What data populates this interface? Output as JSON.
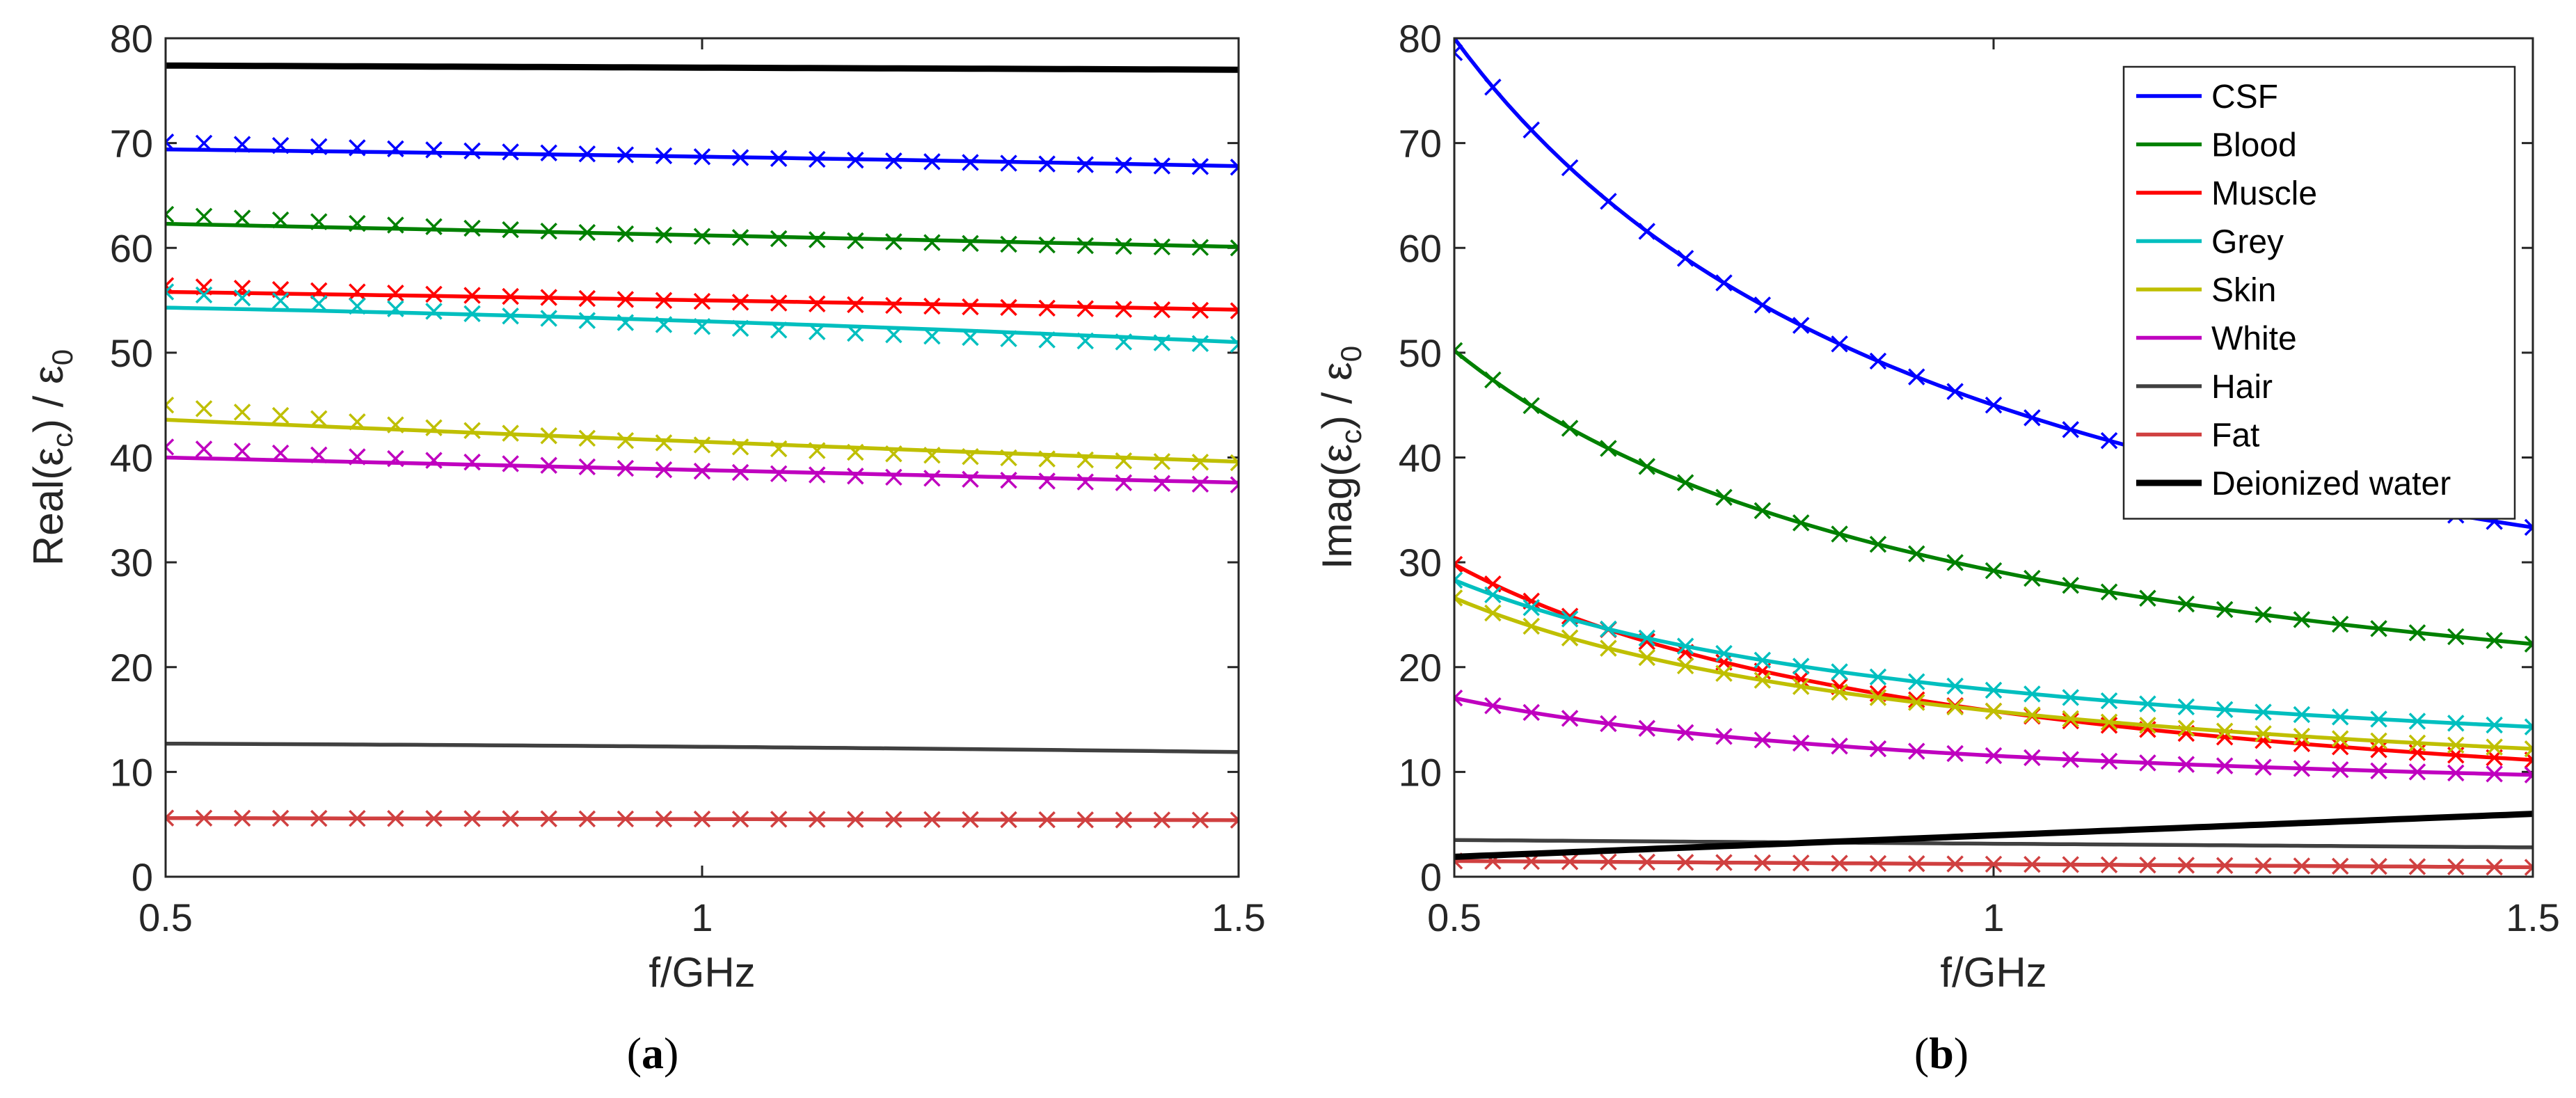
{
  "chart_data": [
    {
      "type": "line",
      "panel": "a",
      "caption_letter": "a",
      "xlabel": "f/GHz",
      "ylabel_main": "Real(",
      "ylabel_eps": "ε",
      "ylabel_sub": "c",
      "ylabel_tail": ") / ",
      "ylabel_sub0": "0",
      "xlim": [
        0.5,
        1.5
      ],
      "ylim": [
        0,
        80
      ],
      "xticks": [
        0.5,
        1,
        1.5
      ],
      "xtick_labels": [
        "0.5",
        "1",
        "1.5"
      ],
      "yticks": [
        0,
        10,
        20,
        30,
        40,
        50,
        60,
        70,
        80
      ],
      "ytick_labels": [
        "0",
        "10",
        "20",
        "30",
        "40",
        "50",
        "60",
        "70",
        "80"
      ],
      "series": [
        {
          "name": "Deionized water",
          "color": "#000000",
          "thick": true,
          "line": [
            77.4,
            77.2,
            77.0
          ],
          "markers": null
        },
        {
          "name": "CSF",
          "color": "#0000ff",
          "line": [
            69.4,
            68.7,
            67.8
          ],
          "markers": [
            70.1,
            68.7,
            67.7
          ]
        },
        {
          "name": "Blood",
          "color": "#008000",
          "line": [
            62.3,
            61.2,
            60.1
          ],
          "markers": [
            63.2,
            61.1,
            60.0
          ]
        },
        {
          "name": "Muscle",
          "color": "#ff0000",
          "line": [
            55.8,
            55.0,
            54.1
          ],
          "markers": [
            56.4,
            54.9,
            54.0
          ]
        },
        {
          "name": "Grey",
          "color": "#00bfbf",
          "line": [
            54.3,
            53.0,
            51.0
          ],
          "markers": [
            55.8,
            52.5,
            50.8
          ]
        },
        {
          "name": "Skin",
          "color": "#bfbf00",
          "line": [
            43.6,
            41.5,
            39.6
          ],
          "markers": [
            45.0,
            41.2,
            39.5
          ]
        },
        {
          "name": "White",
          "color": "#bf00bf",
          "line": [
            40.0,
            38.8,
            37.6
          ],
          "markers": [
            41.0,
            38.7,
            37.4
          ]
        },
        {
          "name": "Hair",
          "color": "#404040",
          "line": [
            12.7,
            12.4,
            11.9
          ],
          "markers": null
        },
        {
          "name": "Fat",
          "color": "#d04040",
          "line": [
            5.6,
            5.5,
            5.4
          ],
          "markers": [
            5.6,
            5.5,
            5.4
          ]
        }
      ]
    },
    {
      "type": "line",
      "panel": "b",
      "caption_letter": "b",
      "xlabel": "f/GHz",
      "ylabel_main": "Imag(",
      "ylabel_eps": "ε",
      "ylabel_sub": "c",
      "ylabel_tail": ") / ",
      "ylabel_sub0": "0",
      "xlim": [
        0.5,
        1.5
      ],
      "ylim": [
        0,
        80
      ],
      "xticks": [
        0.5,
        1,
        1.5
      ],
      "xtick_labels": [
        "0.5",
        "1",
        "1.5"
      ],
      "yticks": [
        0,
        10,
        20,
        30,
        40,
        50,
        60,
        70,
        80
      ],
      "ytick_labels": [
        "0",
        "10",
        "20",
        "30",
        "40",
        "50",
        "60",
        "70",
        "80"
      ],
      "legend_position": "top-right",
      "series": [
        {
          "name": "CSF",
          "color": "#0000ff",
          "model": "a+b/f",
          "a": 10.0,
          "b": 35.0,
          "fmin": 0.51
        },
        {
          "name": "Blood",
          "color": "#008000",
          "model": "a+b/f",
          "a": 8.2,
          "b": 21.0,
          "fmin": 0.5
        },
        {
          "name": "Muscle",
          "color": "#ff0000",
          "model": "a+b/f",
          "a": 1.8,
          "b": 14.0,
          "fmin": 0.5
        },
        {
          "name": "Grey",
          "color": "#00bfbf",
          "model": "a+b/f",
          "a": 7.3,
          "b": 10.5,
          "fmin": 0.5
        },
        {
          "name": "Skin",
          "color": "#bfbf00",
          "model": "a+b/f",
          "a": 5.0,
          "b": 10.8,
          "fmin": 0.5
        },
        {
          "name": "White",
          "color": "#bf00bf",
          "model": "a+b/f",
          "a": 6.05,
          "b": 5.5,
          "fmin": 0.5
        },
        {
          "name": "Hair",
          "color": "#404040",
          "model": "linear",
          "values": [
            3.5,
            2.8
          ],
          "no_markers": true
        },
        {
          "name": "Fat",
          "color": "#d04040",
          "model": "linear",
          "values": [
            1.5,
            0.9
          ]
        },
        {
          "name": "Deionized water",
          "color": "#000000",
          "model": "linear",
          "values": [
            1.9,
            6.0
          ],
          "thick": true,
          "no_markers": true
        }
      ],
      "legend": [
        "CSF",
        "Blood",
        "Muscle",
        "Grey",
        "Skin",
        "White",
        "Hair",
        "Fat",
        "Deionized water"
      ]
    }
  ]
}
